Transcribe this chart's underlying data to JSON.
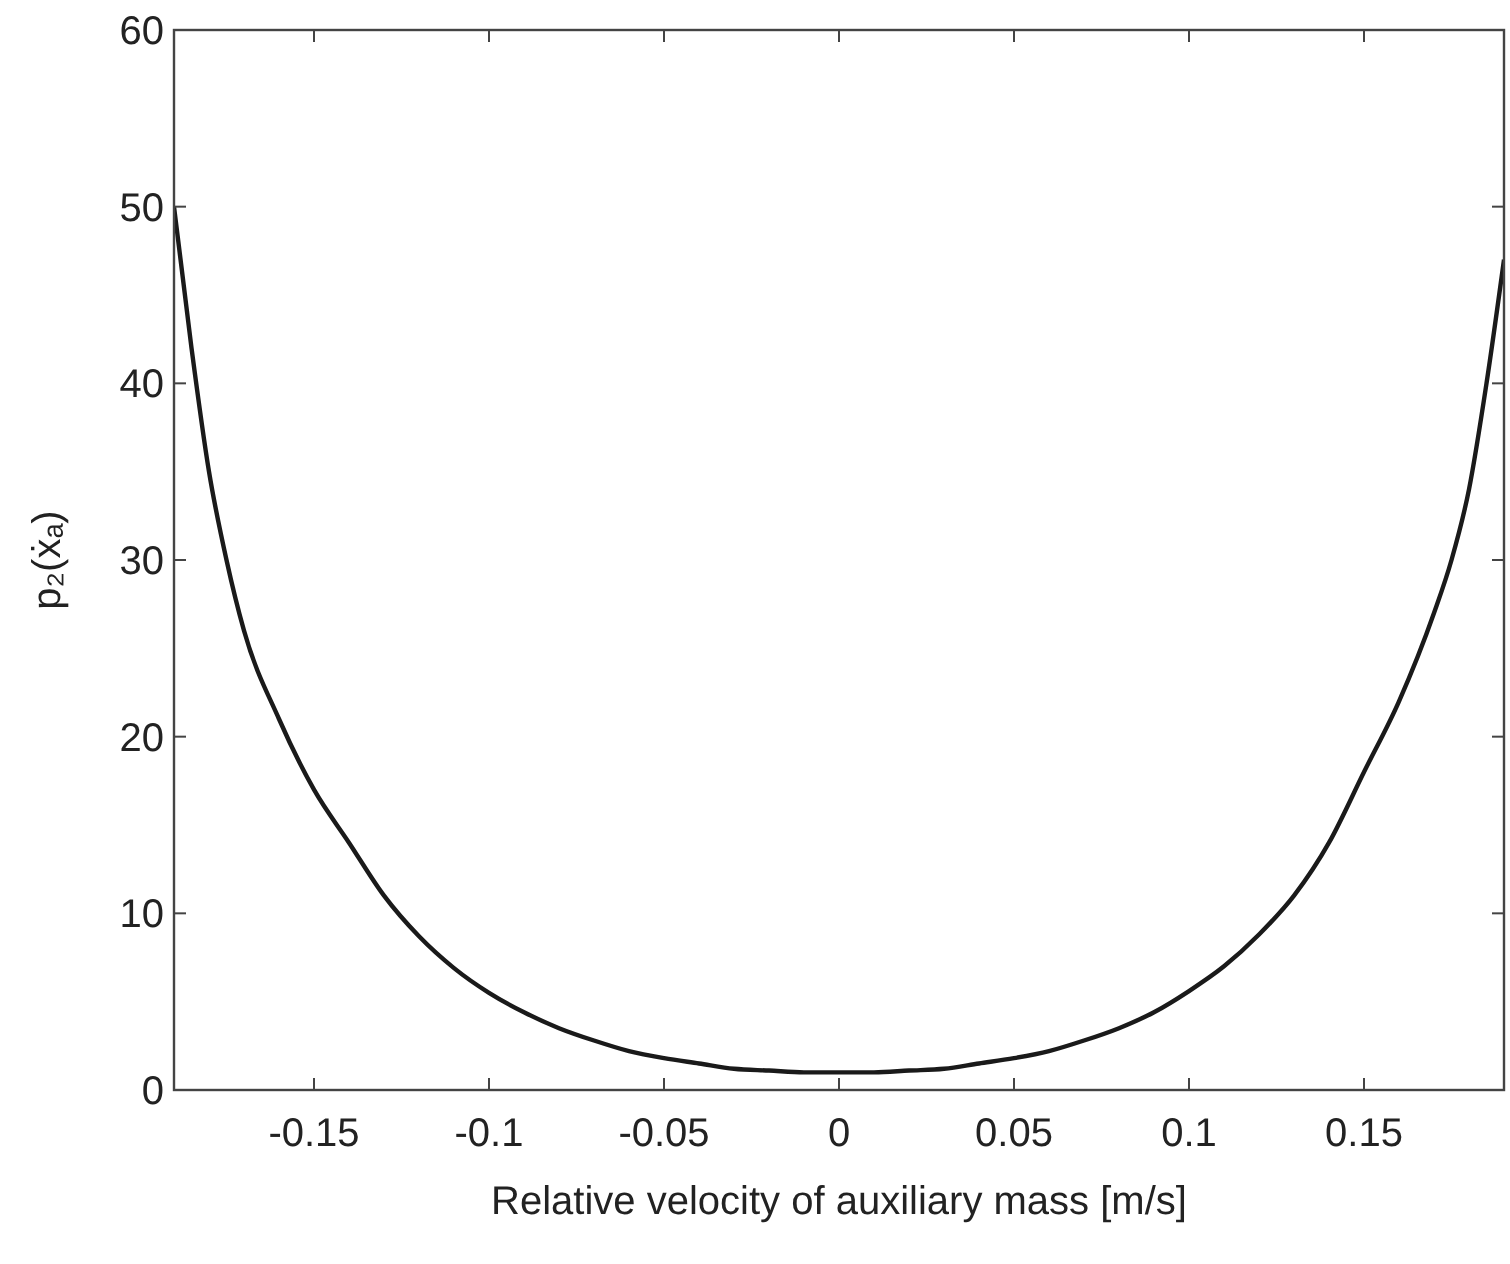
{
  "chart_data": {
    "type": "line",
    "xlabel": "Relative velocity of auxiliary mass [m/s]",
    "ylabel": "p₂(ẋₐ)",
    "xlim": [
      -0.19,
      0.19
    ],
    "ylim": [
      0,
      60
    ],
    "xticks": [
      -0.15,
      -0.1,
      -0.05,
      0,
      0.05,
      0.1,
      0.15
    ],
    "yticks": [
      0,
      10,
      20,
      30,
      40,
      50,
      60
    ],
    "marker": "none",
    "line_style": "solid",
    "series": [
      {
        "color": "#1a1a1a",
        "x": [
          -0.19,
          -0.185,
          -0.18,
          -0.175,
          -0.17,
          -0.16,
          -0.15,
          -0.14,
          -0.13,
          -0.12,
          -0.11,
          -0.1,
          -0.09,
          -0.08,
          -0.07,
          -0.06,
          -0.05,
          -0.04,
          -0.03,
          -0.02,
          -0.01,
          0,
          0.01,
          0.02,
          0.03,
          0.04,
          0.05,
          0.06,
          0.07,
          0.08,
          0.09,
          0.1,
          0.11,
          0.12,
          0.13,
          0.14,
          0.15,
          0.16,
          0.17,
          0.175,
          0.18,
          0.185,
          0.19
        ],
        "values": [
          50,
          42,
          35,
          30,
          26,
          21,
          17,
          14,
          11,
          8.7,
          6.9,
          5.5,
          4.4,
          3.5,
          2.8,
          2.2,
          1.8,
          1.5,
          1.2,
          1.1,
          1,
          1,
          1,
          1.1,
          1.2,
          1.5,
          1.8,
          2.2,
          2.8,
          3.5,
          4.4,
          5.6,
          7,
          8.8,
          11,
          14,
          18,
          22,
          27,
          30,
          34,
          40,
          47
        ]
      }
    ]
  }
}
